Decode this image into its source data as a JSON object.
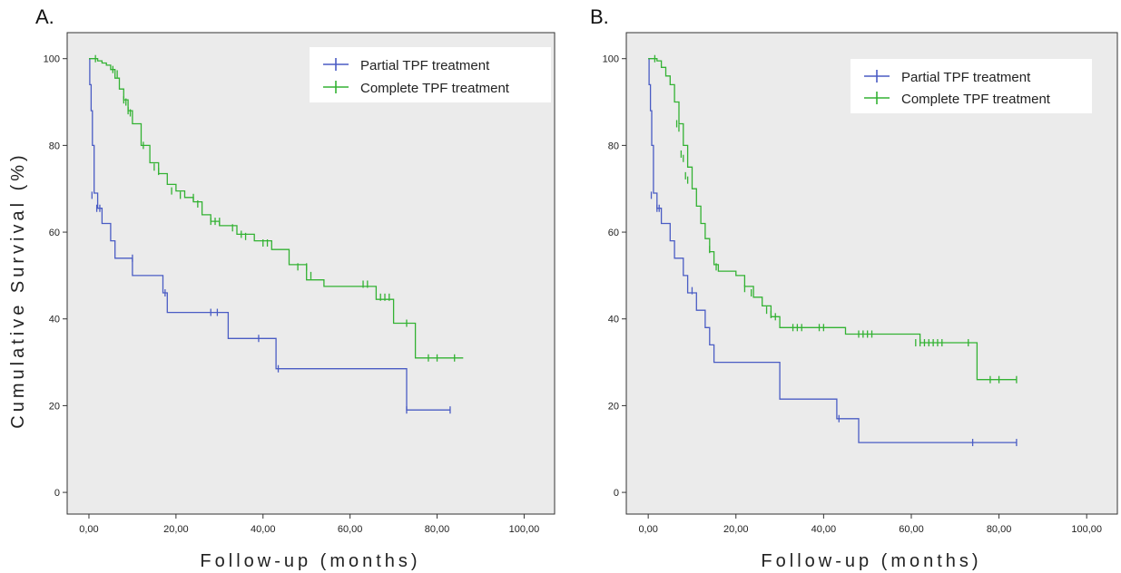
{
  "colors": {
    "partial": "#4a5cc4",
    "complete": "#33b233",
    "plot_bg": "#ebebeb",
    "frame": "#333333"
  },
  "y_axis_title": "Cumulative Survival (%)",
  "chart_data": [
    {
      "type": "line",
      "panel_label": "A.",
      "xlabel": "Follow-up (months)",
      "ylabel": "Cumulative Survival (%)",
      "xlim": [
        -5,
        107
      ],
      "ylim": [
        -5,
        106
      ],
      "x_ticks": [
        0,
        20,
        40,
        60,
        80,
        100
      ],
      "x_tick_labels": [
        "0,00",
        "20,00",
        "40,00",
        "60,00",
        "80,00",
        "100,00"
      ],
      "y_ticks": [
        0,
        20,
        40,
        60,
        80,
        100
      ],
      "y_tick_labels": [
        "0",
        "20",
        "40",
        "60",
        "80",
        "100"
      ],
      "grid": false,
      "legend_position": "top-right",
      "series": [
        {
          "name": "Partial TPF treatment",
          "color_key": "partial",
          "x": [
            0,
            0.2,
            0.5,
            0.8,
            1.2,
            2,
            3,
            4,
            5,
            6,
            10,
            17,
            18,
            32,
            43,
            73,
            83
          ],
          "y": [
            100,
            94,
            88,
            80,
            69,
            65.5,
            62,
            62,
            58,
            54,
            50,
            46,
            41.5,
            35.5,
            28.5,
            19,
            19
          ],
          "censored_x": [
            0.7,
            1.8,
            2.5,
            10,
            17.5,
            28,
            29.5,
            39,
            43.5,
            73,
            83
          ],
          "censored_y": [
            68.5,
            65.5,
            65.5,
            54,
            46,
            41.5,
            41.5,
            35.5,
            28.5,
            19,
            19
          ]
        },
        {
          "name": "Complete TPF treatment",
          "color_key": "complete",
          "x": [
            0,
            1,
            2,
            3,
            4,
            5,
            6,
            7,
            8,
            9,
            10,
            12,
            14,
            16,
            18,
            20,
            22,
            24,
            26,
            28,
            30,
            34,
            38,
            42,
            46,
            50,
            54,
            58,
            62,
            66,
            70,
            75,
            77,
            80,
            86
          ],
          "y": [
            100,
            100,
            99.5,
            99,
            98.5,
            97.5,
            95.5,
            93,
            90.5,
            88,
            85,
            80,
            76,
            73.5,
            71,
            69.5,
            68,
            67,
            64,
            62.5,
            61.5,
            59.5,
            58,
            56,
            52.5,
            49,
            47.5,
            47.5,
            47.5,
            44.5,
            39,
            31,
            31,
            31,
            31
          ],
          "censored_x": [
            1.5,
            5.5,
            6.5,
            8,
            8.5,
            9,
            9.5,
            12.5,
            15,
            16,
            19,
            21,
            24,
            25,
            28,
            29,
            30,
            33,
            35,
            36,
            40,
            41,
            48,
            50,
            51,
            63,
            64,
            67,
            68,
            69,
            73,
            78,
            80,
            84
          ],
          "censored_y": [
            100,
            97.5,
            96.5,
            90.5,
            90,
            88,
            87.5,
            80,
            75,
            74,
            69.5,
            68.5,
            68,
            66.5,
            62.5,
            62.5,
            62.5,
            61,
            59.5,
            59,
            57.5,
            57.5,
            52,
            52,
            50,
            48,
            48,
            45,
            45,
            45,
            39,
            31,
            31,
            31
          ]
        }
      ]
    },
    {
      "type": "line",
      "panel_label": "B.",
      "xlabel": "Follow-up (months)",
      "ylabel": "",
      "xlim": [
        -5,
        107
      ],
      "ylim": [
        -5,
        106
      ],
      "x_ticks": [
        0,
        20,
        40,
        60,
        80,
        100
      ],
      "x_tick_labels": [
        "0,00",
        "20,00",
        "40,00",
        "60,00",
        "80,00",
        "100,00"
      ],
      "y_ticks": [
        0,
        20,
        40,
        60,
        80,
        100
      ],
      "y_tick_labels": [
        "0",
        "20",
        "40",
        "60",
        "80",
        "100"
      ],
      "grid": false,
      "legend_position": "top-right",
      "series": [
        {
          "name": "Partial TPF treatment",
          "color_key": "partial",
          "x": [
            0,
            0.2,
            0.5,
            0.8,
            1.2,
            2,
            3,
            4,
            5,
            6,
            7,
            8,
            9,
            10,
            11,
            12,
            13,
            14,
            15,
            30,
            43,
            48,
            84
          ],
          "y": [
            100,
            94,
            88,
            80,
            69,
            65.5,
            62,
            62,
            58,
            54,
            54,
            50,
            46,
            46,
            42,
            42,
            38,
            34,
            30,
            21.5,
            17,
            11.5,
            11.5
          ],
          "censored_x": [
            0.7,
            2,
            2.5,
            10,
            43.5,
            74,
            84
          ],
          "censored_y": [
            68.5,
            65.5,
            65.5,
            46.5,
            17,
            11.5,
            11.5
          ]
        },
        {
          "name": "Complete TPF treatment",
          "color_key": "complete",
          "x": [
            0,
            1,
            2,
            3,
            4,
            5,
            6,
            7,
            8,
            9,
            10,
            11,
            12,
            13,
            14,
            15,
            16,
            18,
            20,
            22,
            24,
            26,
            28,
            30,
            34,
            40,
            45,
            50,
            55,
            60,
            62,
            65,
            70,
            75,
            77,
            84
          ],
          "y": [
            100,
            100,
            99.5,
            98,
            96,
            94,
            90,
            85,
            80,
            75,
            70,
            66,
            62,
            58.5,
            55.5,
            52.5,
            51,
            51,
            50,
            47.5,
            45,
            43,
            40.5,
            38,
            38,
            38,
            36.5,
            36.5,
            36.5,
            36.5,
            34.5,
            34.5,
            34.5,
            26,
            26,
            26
          ],
          "censored_x": [
            1.5,
            6.5,
            7,
            7.5,
            8,
            8.5,
            9,
            14,
            15.5,
            22,
            23.5,
            27,
            28,
            29,
            33,
            34,
            35,
            39,
            40,
            48,
            49,
            50,
            51,
            61,
            62,
            63,
            64,
            65,
            66,
            67,
            73,
            78,
            80,
            84
          ],
          "censored_y": [
            100,
            85,
            84,
            78,
            77,
            73,
            72,
            56,
            52,
            47,
            46,
            42,
            41,
            40.5,
            38,
            38,
            38,
            38,
            38,
            36.5,
            36.5,
            36.5,
            36.5,
            34.5,
            34.5,
            34.5,
            34.5,
            34.5,
            34.5,
            34.5,
            34.5,
            26,
            26,
            26
          ]
        }
      ]
    }
  ]
}
